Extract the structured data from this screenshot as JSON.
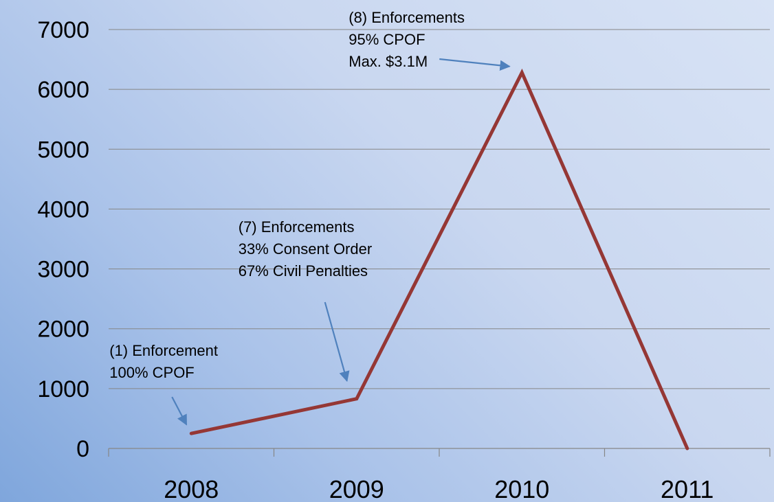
{
  "chart_data": {
    "type": "line",
    "title": "",
    "xlabel": "",
    "ylabel": "",
    "categories": [
      "2008",
      "2009",
      "2010",
      "2011"
    ],
    "series": [
      {
        "values": [
          250,
          830,
          6280,
          0
        ],
        "color": "#953735"
      }
    ],
    "ylim": [
      0,
      7000
    ],
    "yticks": [
      0,
      1000,
      2000,
      3000,
      4000,
      5000,
      6000,
      7000
    ],
    "grid": true,
    "legend": "none",
    "annotation_color": "#4f81bd",
    "annotations": [
      {
        "category": "2008",
        "lines": [
          "(1) Enforcement",
          "100% CPOF"
        ]
      },
      {
        "category": "2009",
        "lines": [
          "(7) Enforcements",
          "33% Consent Order",
          "67% Civil Penalties"
        ]
      },
      {
        "category": "2010",
        "lines": [
          "(8) Enforcements",
          "95% CPOF",
          "Max. $3.1M"
        ]
      }
    ]
  }
}
